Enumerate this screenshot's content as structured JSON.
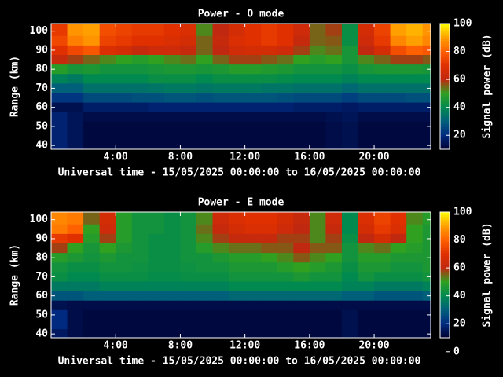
{
  "chart_data": [
    {
      "type": "heatmap",
      "title": "Power - O mode",
      "xlabel": "Universal time - 15/05/2025 00:00:00 to 16/05/2025 00:00:00",
      "ylabel": "Range (km)",
      "colorbar_label": "Signal power (dB)",
      "x_edges": [
        0,
        1,
        2,
        3,
        4,
        5,
        6,
        7,
        8,
        9,
        10,
        11,
        12,
        13,
        14,
        15,
        16,
        17,
        18,
        19,
        20,
        21,
        22,
        23,
        23.5
      ],
      "y_edges": [
        104,
        97.5,
        92.5,
        87.5,
        82.5,
        77.5,
        72.5,
        67.5,
        62.5,
        57.5,
        52.5,
        47.5,
        42.5,
        38
      ],
      "xlim": [
        0,
        23.5
      ],
      "xticks": [
        {
          "value": 4,
          "label": "4:00"
        },
        {
          "value": 8,
          "label": "8:00"
        },
        {
          "value": 12,
          "label": "12:00"
        },
        {
          "value": 16,
          "label": "16:00"
        },
        {
          "value": 20,
          "label": "20:00"
        }
      ],
      "ylim": [
        38,
        104
      ],
      "yticks": [
        40,
        50,
        60,
        70,
        80,
        90,
        100
      ],
      "clim": [
        10,
        100
      ],
      "cticks": [
        20,
        40,
        60,
        80,
        100
      ],
      "colorscale": [
        "#000030",
        "#002a80",
        "#00607a",
        "#008a50",
        "#30a020",
        "#c02810",
        "#e03000",
        "#ff6000",
        "#ffa000",
        "#ffff00"
      ],
      "z": [
        [
          72,
          88,
          90,
          76,
          74,
          72,
          72,
          70,
          68,
          52,
          60,
          66,
          70,
          72,
          70,
          64,
          55,
          58,
          42,
          66,
          74,
          90,
          92,
          88
        ],
        [
          75,
          85,
          88,
          74,
          72,
          70,
          70,
          68,
          66,
          55,
          62,
          68,
          70,
          72,
          70,
          62,
          55,
          56,
          42,
          64,
          72,
          86,
          90,
          86
        ],
        [
          70,
          75,
          78,
          68,
          66,
          62,
          64,
          64,
          62,
          55,
          60,
          65,
          66,
          66,
          64,
          58,
          52,
          54,
          45,
          60,
          66,
          76,
          80,
          78
        ],
        [
          62,
          58,
          55,
          52,
          50,
          48,
          50,
          52,
          54,
          50,
          55,
          58,
          58,
          56,
          54,
          50,
          48,
          50,
          45,
          52,
          55,
          58,
          58,
          56
        ],
        [
          48,
          45,
          46,
          44,
          44,
          44,
          45,
          46,
          46,
          45,
          46,
          48,
          48,
          47,
          46,
          44,
          44,
          44,
          42,
          45,
          46,
          46,
          46,
          45
        ],
        [
          38,
          36,
          40,
          40,
          40,
          40,
          42,
          42,
          42,
          40,
          42,
          42,
          42,
          42,
          41,
          40,
          40,
          40,
          38,
          40,
          40,
          40,
          40,
          40
        ],
        [
          30,
          30,
          34,
          34,
          34,
          34,
          35,
          36,
          36,
          35,
          36,
          36,
          36,
          35,
          35,
          34,
          34,
          34,
          32,
          34,
          34,
          34,
          34,
          34
        ],
        [
          22,
          22,
          26,
          26,
          26,
          27,
          27,
          28,
          28,
          27,
          28,
          28,
          28,
          28,
          27,
          26,
          26,
          26,
          24,
          26,
          26,
          26,
          27,
          27
        ],
        [
          14,
          14,
          17,
          17,
          17,
          17,
          18,
          18,
          18,
          18,
          18,
          18,
          18,
          18,
          18,
          17,
          17,
          17,
          16,
          17,
          17,
          17,
          17,
          17
        ],
        [
          18,
          15,
          13,
          13,
          13,
          13,
          13,
          13,
          13,
          13,
          13,
          13,
          13,
          13,
          13,
          13,
          13,
          14,
          15,
          13,
          13,
          13,
          13,
          13
        ],
        [
          18,
          15,
          12,
          12,
          12,
          12,
          12,
          12,
          12,
          12,
          12,
          12,
          12,
          12,
          12,
          12,
          12,
          13,
          14,
          12,
          12,
          12,
          12,
          12
        ],
        [
          18,
          15,
          12,
          12,
          12,
          12,
          12,
          12,
          12,
          12,
          12,
          12,
          12,
          12,
          12,
          12,
          12,
          13,
          14,
          12,
          12,
          12,
          12,
          12
        ],
        [
          18,
          15,
          12,
          12,
          12,
          12,
          12,
          12,
          12,
          12,
          12,
          12,
          12,
          12,
          12,
          12,
          12,
          13,
          14,
          12,
          12,
          12,
          12,
          12
        ]
      ]
    },
    {
      "type": "heatmap",
      "title": "Power - E mode",
      "xlabel": "Universal time - 15/05/2025 00:00:00 to 16/05/2025 00:00:00",
      "ylabel": "Range (km)",
      "colorbar_label": "Signal power (dB)",
      "x_edges": [
        0,
        1,
        2,
        3,
        4,
        5,
        6,
        7,
        8,
        9,
        10,
        11,
        12,
        13,
        14,
        15,
        16,
        17,
        18,
        19,
        20,
        21,
        22,
        23,
        23.5
      ],
      "y_edges": [
        104,
        97.5,
        92.5,
        87.5,
        82.5,
        77.5,
        72.5,
        67.5,
        62.5,
        57.5,
        52.5,
        47.5,
        42.5,
        38
      ],
      "xlim": [
        0,
        23.5
      ],
      "xticks": [
        {
          "value": 4,
          "label": "4:00"
        },
        {
          "value": 8,
          "label": "8:00"
        },
        {
          "value": 12,
          "label": "12:00"
        },
        {
          "value": 16,
          "label": "16:00"
        },
        {
          "value": 20,
          "label": "20:00"
        }
      ],
      "ylim": [
        38,
        104
      ],
      "yticks": [
        40,
        50,
        60,
        70,
        80,
        90,
        100
      ],
      "clim": [
        10,
        100
      ],
      "cticks": [
        0,
        20,
        40,
        60,
        80,
        100
      ],
      "colorscale": [
        "#000030",
        "#002a80",
        "#00607a",
        "#008a50",
        "#30a020",
        "#c02810",
        "#e03000",
        "#ff6000",
        "#ffa000",
        "#ffff00"
      ],
      "z": [
        [
          86,
          84,
          55,
          66,
          48,
          44,
          44,
          42,
          44,
          52,
          64,
          68,
          70,
          70,
          66,
          62,
          52,
          64,
          40,
          68,
          74,
          70,
          52,
          48
        ],
        [
          84,
          80,
          50,
          64,
          48,
          44,
          44,
          42,
          44,
          54,
          62,
          66,
          68,
          68,
          64,
          60,
          52,
          62,
          40,
          66,
          72,
          68,
          50,
          46
        ],
        [
          72,
          70,
          48,
          58,
          48,
          44,
          42,
          42,
          44,
          52,
          58,
          62,
          62,
          62,
          58,
          58,
          52,
          58,
          42,
          60,
          66,
          60,
          50,
          46
        ],
        [
          58,
          50,
          45,
          50,
          46,
          44,
          42,
          42,
          44,
          48,
          52,
          54,
          54,
          56,
          56,
          60,
          56,
          56,
          44,
          52,
          54,
          50,
          48,
          46
        ],
        [
          48,
          46,
          44,
          46,
          44,
          44,
          42,
          42,
          44,
          44,
          46,
          48,
          48,
          50,
          52,
          56,
          52,
          50,
          44,
          48,
          48,
          46,
          46,
          46
        ],
        [
          44,
          42,
          42,
          44,
          44,
          43,
          42,
          42,
          43,
          44,
          44,
          46,
          46,
          46,
          48,
          50,
          48,
          46,
          42,
          46,
          46,
          44,
          44,
          46
        ],
        [
          42,
          40,
          40,
          42,
          42,
          42,
          41,
          41,
          42,
          42,
          42,
          44,
          44,
          44,
          44,
          46,
          44,
          44,
          40,
          44,
          42,
          42,
          42,
          44
        ],
        [
          36,
          36,
          36,
          38,
          38,
          38,
          38,
          38,
          38,
          38,
          38,
          40,
          40,
          40,
          40,
          40,
          40,
          40,
          38,
          38,
          36,
          36,
          36,
          38
        ],
        [
          28,
          28,
          30,
          30,
          30,
          30,
          30,
          30,
          30,
          30,
          30,
          32,
          32,
          32,
          32,
          32,
          32,
          32,
          30,
          30,
          28,
          28,
          28,
          30
        ],
        [
          14,
          13,
          13,
          13,
          13,
          13,
          13,
          13,
          13,
          13,
          13,
          13,
          13,
          13,
          13,
          13,
          13,
          13,
          13,
          13,
          13,
          13,
          13,
          13
        ],
        [
          20,
          13,
          12,
          12,
          12,
          12,
          12,
          12,
          12,
          12,
          12,
          12,
          12,
          12,
          12,
          12,
          12,
          12,
          14,
          12,
          12,
          12,
          12,
          12
        ],
        [
          20,
          13,
          12,
          12,
          12,
          12,
          12,
          12,
          12,
          12,
          12,
          12,
          12,
          12,
          12,
          12,
          12,
          12,
          14,
          12,
          12,
          12,
          12,
          12
        ],
        [
          16,
          13,
          12,
          12,
          12,
          12,
          12,
          12,
          12,
          12,
          12,
          12,
          12,
          12,
          12,
          12,
          12,
          12,
          14,
          12,
          12,
          12,
          12,
          12
        ]
      ]
    }
  ]
}
